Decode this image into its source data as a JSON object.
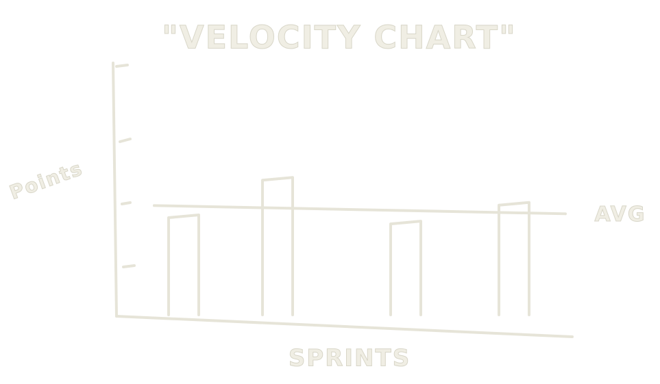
{
  "chart_data": {
    "type": "bar",
    "title": "\"VELOCITY CHART\"",
    "x_label": "SPRINTS",
    "y_label": "Points",
    "categories": [
      null,
      null,
      null,
      null
    ],
    "values": [
      1.6,
      2.2,
      1.5,
      1.8
    ],
    "color": "#e6e4d8",
    "ylim": [
      0,
      4
    ],
    "average": {
      "label": "AVG",
      "value": 1.75
    }
  }
}
